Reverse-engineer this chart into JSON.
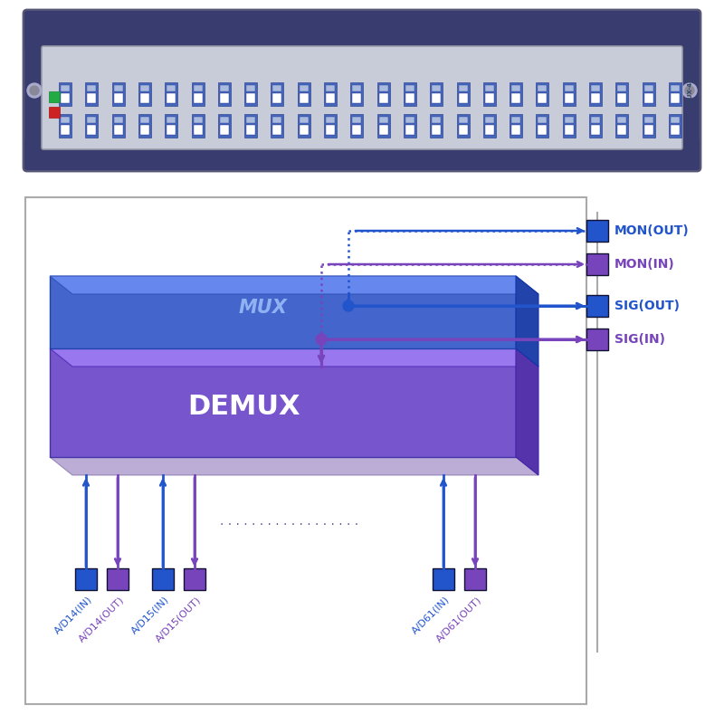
{
  "blue": "#2255cc",
  "purple": "#7744bb",
  "blue_light": "#4477dd",
  "purple_light": "#9966cc",
  "mux_face": "#4466cc",
  "mux_top": "#6688ee",
  "mux_right": "#2244aa",
  "demux_face": "#7755cc",
  "demux_top": "#9977ee",
  "demux_right": "#5533aa",
  "demux_bottom_shelf": "#aa99dd",
  "panel_dark": "#383c6e",
  "panel_face": "#c8ccd8",
  "port_blue": "#4466bb",
  "port_labels_bottom": [
    "A/D14(IN)",
    "A/D14(OUT)",
    "A/D15(IN)",
    "A/D15(OUT)",
    "A/D61(IN)",
    "A/D61(OUT)"
  ],
  "port_labels_right": [
    "MON(OUT)",
    "MON(IN)",
    "SIG(OUT)",
    "SIG(IN)"
  ]
}
